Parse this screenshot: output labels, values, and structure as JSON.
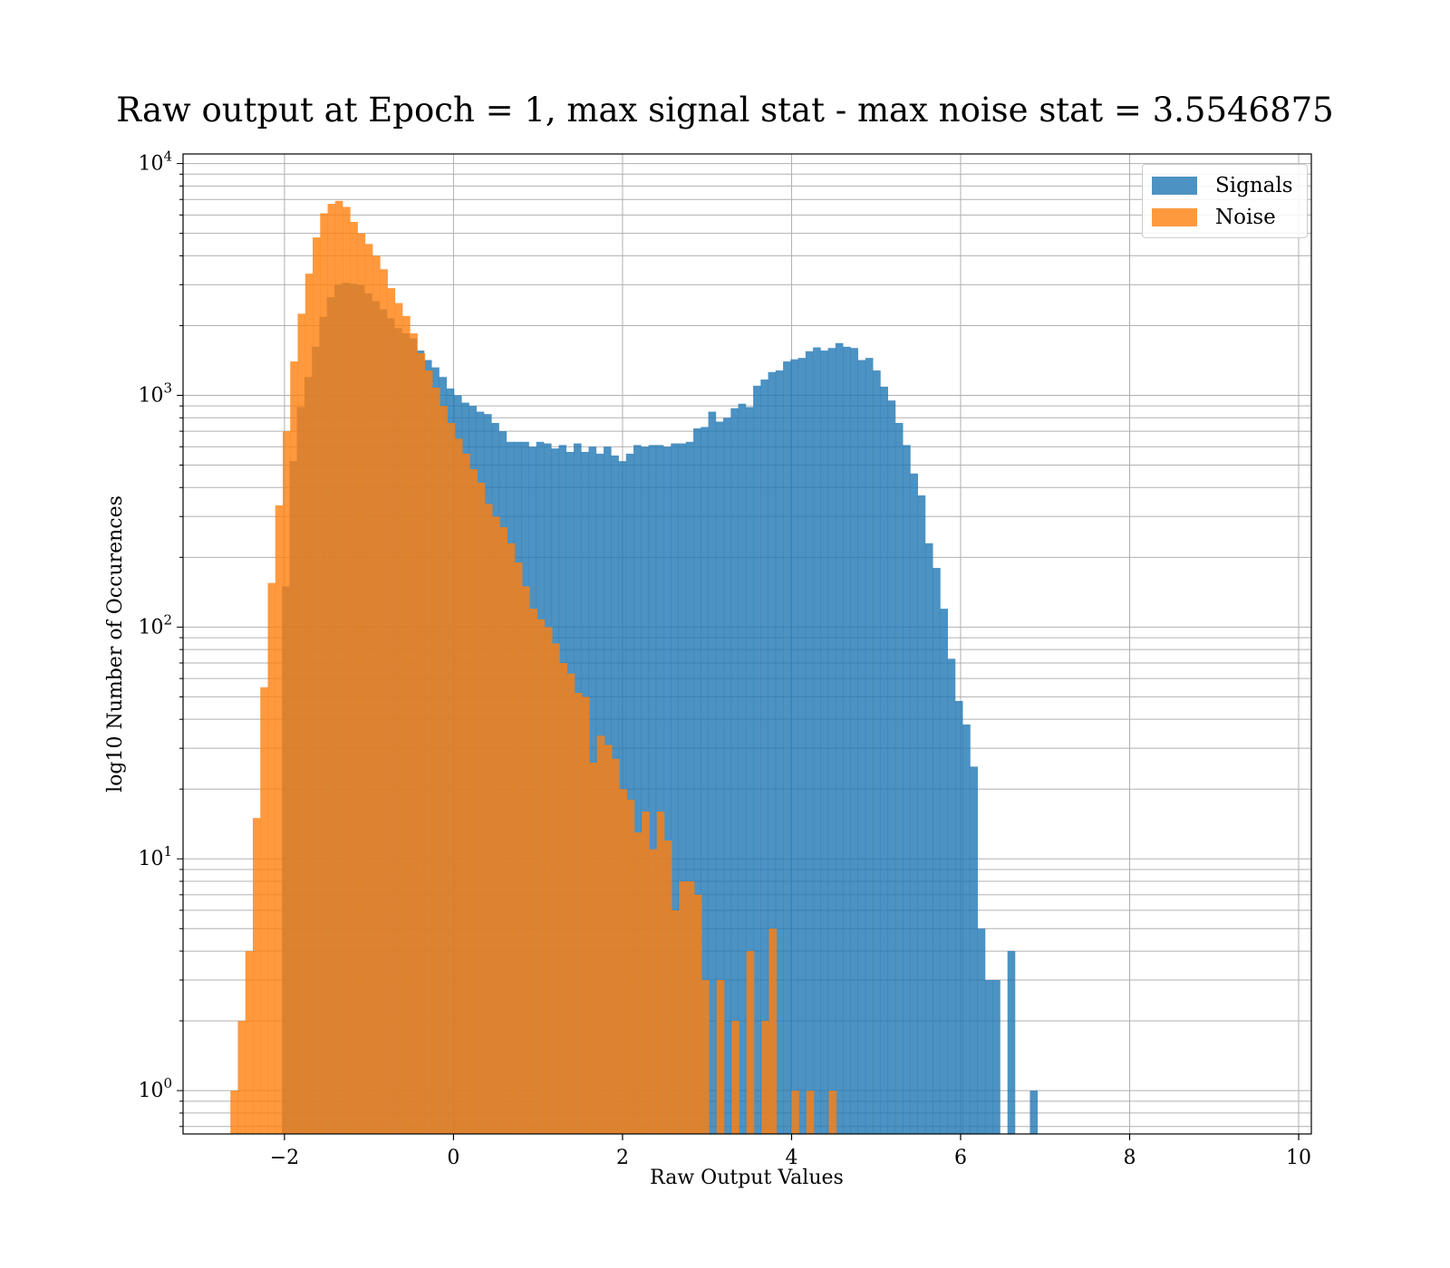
{
  "chart_data": {
    "type": "bar",
    "title": "Raw output at Epoch = 1, max signal stat - max noise stat = 3.5546875",
    "xlabel": "Raw Output Values",
    "ylabel": "log10 Number of Occurences",
    "xlim": [
      -3.2,
      10.15
    ],
    "ylim": [
      0.65,
      11000
    ],
    "yscale": "log",
    "grid": true,
    "legend_position": "top-right",
    "x_ticks": [
      -2,
      0,
      2,
      4,
      6,
      8,
      10
    ],
    "x_tick_labels": [
      "−2",
      "0",
      "2",
      "4",
      "6",
      "8",
      "10"
    ],
    "y_ticks": [
      {
        "value": 1,
        "base": "10",
        "exp": "0"
      },
      {
        "value": 10,
        "base": "10",
        "exp": "1"
      },
      {
        "value": 100,
        "base": "10",
        "exp": "2"
      },
      {
        "value": 1000,
        "base": "10",
        "exp": "3"
      },
      {
        "value": 10000,
        "base": "10",
        "exp": "4"
      }
    ],
    "series": [
      {
        "name": "Signals",
        "color": "#1f77b4",
        "opacity": 0.8,
        "bin_start": -2.03,
        "bin_width": 0.0885,
        "values": [
          150,
          520,
          890,
          1200,
          1620,
          2180,
          2650,
          3000,
          3060,
          3030,
          2990,
          2750,
          2550,
          2350,
          2150,
          1950,
          1850,
          1760,
          1560,
          1420,
          1320,
          1200,
          1070,
          1000,
          930,
          900,
          850,
          830,
          760,
          700,
          630,
          630,
          630,
          600,
          630,
          620,
          590,
          610,
          570,
          620,
          570,
          600,
          560,
          600,
          550,
          520,
          560,
          610,
          600,
          610,
          610,
          600,
          620,
          620,
          630,
          720,
          730,
          850,
          770,
          800,
          880,
          920,
          890,
          1100,
          1170,
          1260,
          1280,
          1400,
          1430,
          1450,
          1550,
          1610,
          1560,
          1600,
          1680,
          1620,
          1600,
          1420,
          1450,
          1280,
          1090,
          950,
          760,
          610,
          460,
          370,
          230,
          180,
          120,
          73,
          48,
          38,
          25,
          5,
          3,
          3,
          0,
          4,
          0,
          0,
          1
        ]
      },
      {
        "name": "Noise",
        "color": "#ff7f0e",
        "opacity": 0.8,
        "bin_start": -2.64,
        "bin_width": 0.0885,
        "values": [
          1,
          2,
          4,
          15,
          55,
          155,
          335,
          700,
          1400,
          2250,
          3350,
          4800,
          6100,
          6700,
          6900,
          6500,
          5600,
          5000,
          4500,
          4000,
          3500,
          2900,
          2500,
          2200,
          1850,
          1520,
          1280,
          1080,
          900,
          760,
          650,
          560,
          480,
          420,
          340,
          300,
          270,
          230,
          190,
          150,
          120,
          108,
          100,
          85,
          70,
          63,
          52,
          50,
          26,
          34,
          31,
          27,
          20,
          18,
          13,
          16,
          11,
          16,
          12,
          6,
          8,
          8,
          7,
          3,
          0,
          3,
          0,
          2,
          0,
          4,
          0,
          2,
          5,
          0,
          0,
          1,
          0,
          1,
          0,
          0,
          1,
          0
        ]
      }
    ]
  }
}
